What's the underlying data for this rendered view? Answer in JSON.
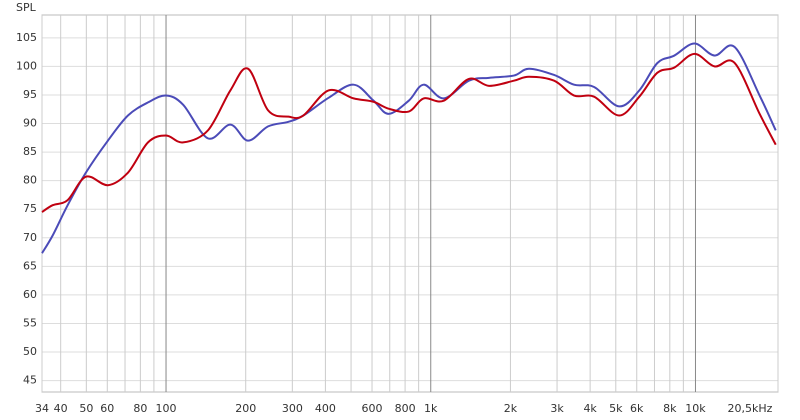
{
  "chart_data": {
    "type": "line",
    "y_label": "SPL",
    "log_x": true,
    "grid": true,
    "x": [
      34,
      37.3,
      42.5,
      49.8,
      60.3,
      71.8,
      85.5,
      100,
      116,
      144,
      175,
      204,
      243,
      290,
      330,
      411,
      511,
      608,
      693,
      826,
      940,
      1120,
      1393,
      1660,
      2060,
      2350,
      2925,
      3480,
      4140,
      5150,
      6135,
      7180,
      8320,
      9910,
      11800,
      14060,
      17470,
      20100
    ],
    "series": [
      {
        "color": "#4b4bb8",
        "values": [
          67.3,
          70.4,
          75.7,
          81.4,
          87,
          91.4,
          93.7,
          94.9,
          93.3,
          87.4,
          89.8,
          87,
          89.5,
          90.3,
          91.4,
          94.5,
          96.8,
          94,
          91.7,
          94,
          96.8,
          94.4,
          97.5,
          98,
          98.4,
          99.6,
          98.5,
          96.8,
          96.4,
          93,
          95.8,
          100.6,
          101.9,
          104,
          101.9,
          103.4,
          94.9,
          88.8
        ]
      },
      {
        "color": "#c00010",
        "values": [
          74.5,
          75.7,
          76.6,
          80.7,
          79.2,
          81.4,
          86.7,
          87.9,
          86.7,
          88.8,
          95.8,
          99.6,
          92.3,
          91.2,
          91.4,
          95.8,
          94.4,
          93.8,
          92.6,
          92.1,
          94.4,
          94,
          97.8,
          96.6,
          97.5,
          98.2,
          97.5,
          94.9,
          94.7,
          91.4,
          94.7,
          98.9,
          99.8,
          102.2,
          100,
          100.6,
          91.7,
          86.3
        ]
      }
    ],
    "xlim": [
      34,
      20500
    ],
    "ylim": [
      43,
      109
    ],
    "xticks": [
      34,
      40,
      50,
      60,
      80,
      100,
      200,
      300,
      400,
      600,
      800,
      {
        "value": 1000,
        "label": "1k"
      },
      {
        "value": 2000,
        "label": "2k"
      },
      {
        "value": 3000,
        "label": "3k"
      },
      {
        "value": 4000,
        "label": "4k"
      },
      {
        "value": 5000,
        "label": "5k"
      },
      {
        "value": 6000,
        "label": "6k"
      },
      {
        "value": 8000,
        "label": "8k"
      },
      {
        "value": 10000,
        "label": "10k"
      },
      {
        "value": 20500,
        "label": "20,5kHz"
      }
    ],
    "xgrid": [
      70,
      90,
      500,
      700,
      900,
      7000,
      9000
    ],
    "yticks": [
      45,
      50,
      55,
      60,
      65,
      70,
      75,
      80,
      85,
      90,
      95,
      100,
      105
    ]
  }
}
